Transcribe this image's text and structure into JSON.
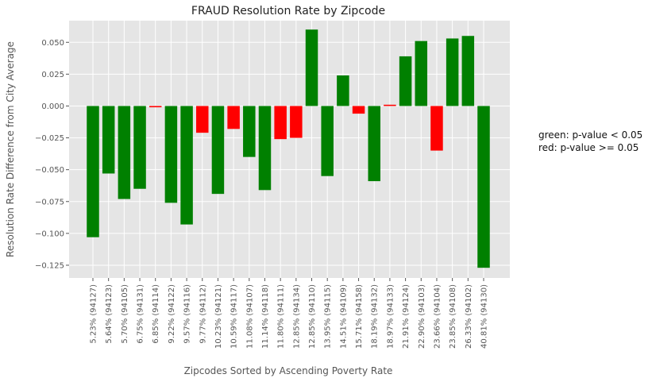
{
  "chart_data": {
    "type": "bar",
    "title": "FRAUD Resolution Rate by Zipcode",
    "xlabel": "Zipcodes Sorted by Ascending Poverty Rate",
    "ylabel": "Resolution Rate Difference from City Average",
    "ylim": [
      -0.135,
      0.067
    ],
    "yticks": [
      -0.125,
      -0.1,
      -0.075,
      -0.05,
      -0.025,
      0.0,
      0.025,
      0.05
    ],
    "ytick_labels": [
      "−0.125",
      "−0.100",
      "−0.075",
      "−0.050",
      "−0.025",
      "0.000",
      "0.025",
      "0.050"
    ],
    "grid": true,
    "categories": [
      "5.23% (94127)",
      "5.64% (94123)",
      "5.70% (94105)",
      "6.75% (94131)",
      "6.85% (94114)",
      "9.22% (94122)",
      "9.57% (94116)",
      "9.77% (94112)",
      "10.23% (94121)",
      "10.59% (94117)",
      "11.08% (94107)",
      "11.14% (94118)",
      "11.80% (94111)",
      "12.85% (94134)",
      "12.85% (94110)",
      "13.95% (94115)",
      "14.51% (94109)",
      "15.71% (94158)",
      "18.19% (94132)",
      "18.97% (94133)",
      "21.91% (94124)",
      "22.90% (94103)",
      "23.66% (94104)",
      "23.85% (94108)",
      "26.33% (94102)",
      "40.81% (94130)"
    ],
    "values": [
      -0.103,
      -0.053,
      -0.073,
      -0.065,
      -0.001,
      -0.076,
      -0.093,
      -0.021,
      -0.069,
      -0.018,
      -0.04,
      -0.066,
      -0.026,
      -0.025,
      0.06,
      -0.055,
      0.024,
      -0.006,
      -0.059,
      0.001,
      0.039,
      0.051,
      -0.035,
      0.053,
      0.055,
      -0.127
    ],
    "colors": [
      "green",
      "green",
      "green",
      "green",
      "red",
      "green",
      "green",
      "red",
      "green",
      "red",
      "green",
      "green",
      "red",
      "red",
      "green",
      "green",
      "green",
      "red",
      "green",
      "red",
      "green",
      "green",
      "red",
      "green",
      "green",
      "green"
    ],
    "color_map": {
      "green": "#008000",
      "red": "#ff0000"
    },
    "legend_position": "right",
    "legend": {
      "line1": "green: p-value < 0.05",
      "line2": "red: p-value >= 0.05"
    }
  }
}
